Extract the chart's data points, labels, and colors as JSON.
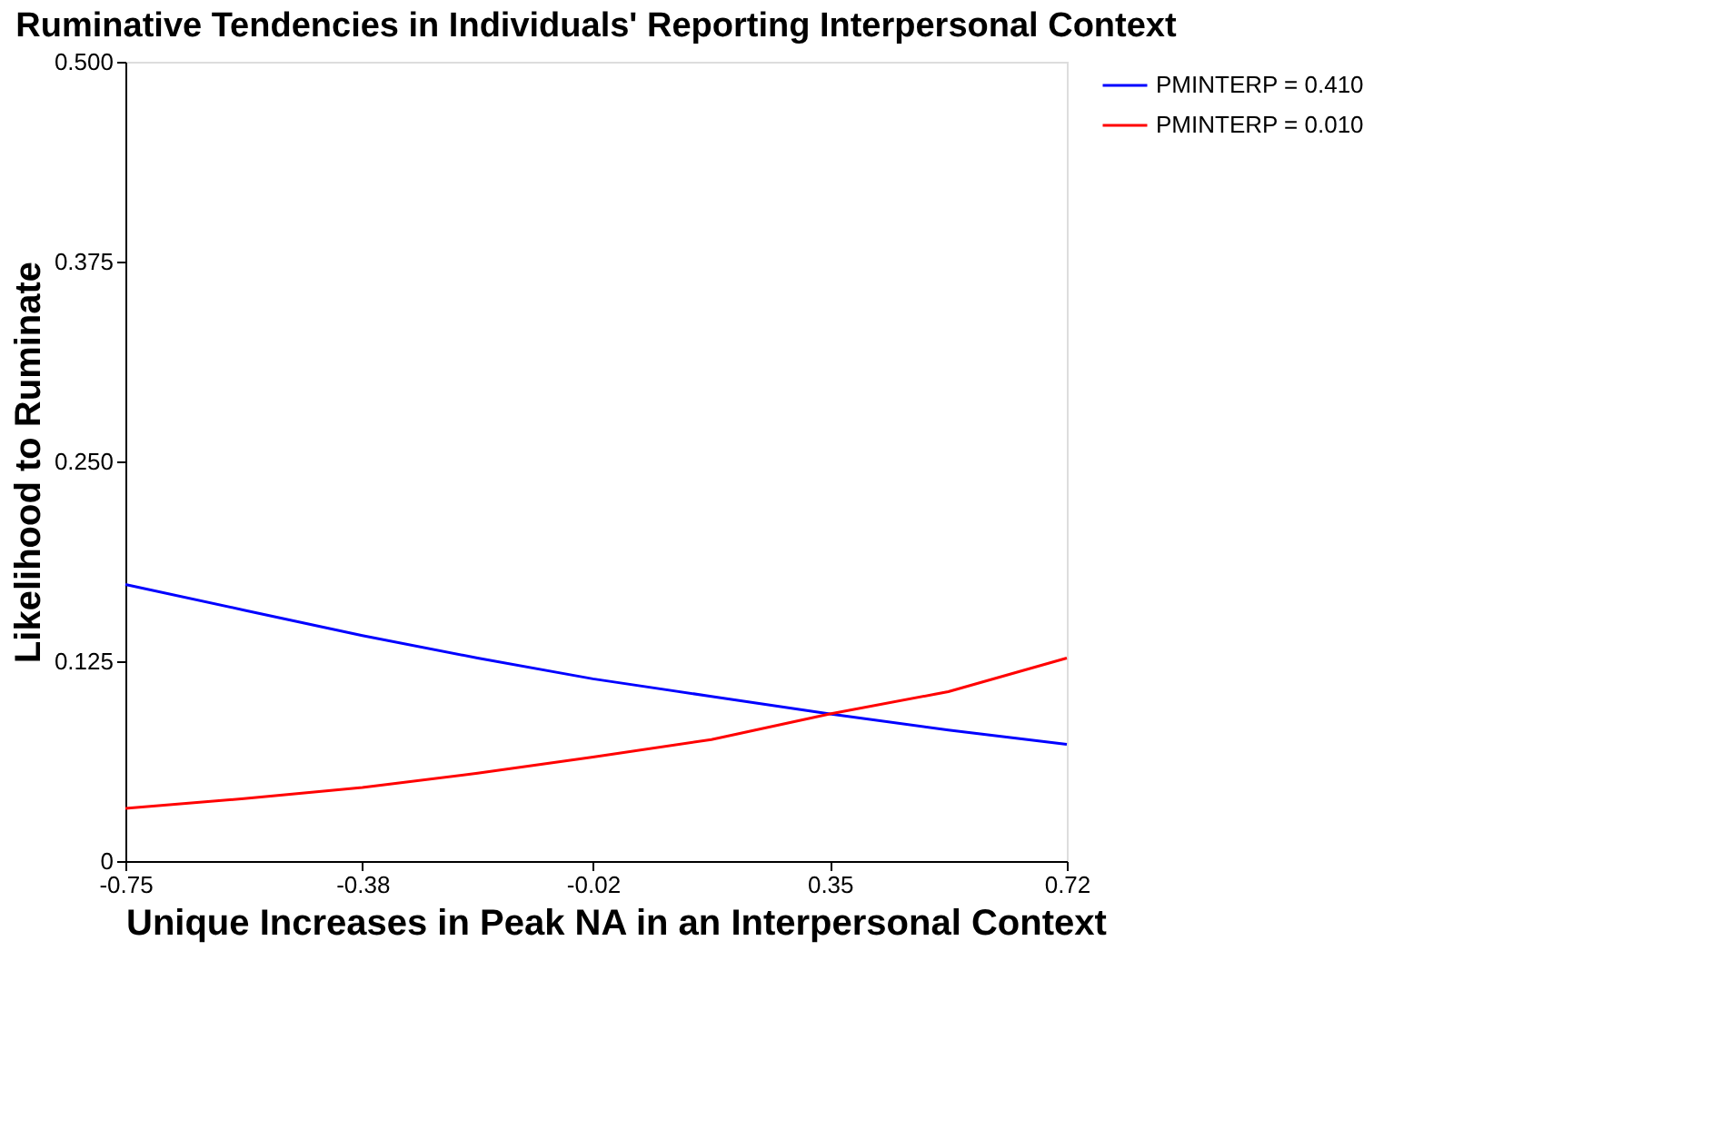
{
  "chart_data": {
    "type": "line",
    "title": "Ruminative Tendencies in Individuals' Reporting Interpersonal Context",
    "xlabel": "Unique Increases in Peak NA in an Interpersonal Context",
    "ylabel": "Likelihood to Ruminate",
    "x": [
      -0.75,
      -0.565,
      -0.38,
      -0.2,
      -0.02,
      0.165,
      0.35,
      0.535,
      0.72
    ],
    "series": [
      {
        "name": "PMINTERP = 0.410",
        "color": "#0000ff",
        "values": [
          0.173,
          0.157,
          0.141,
          0.127,
          0.114,
          0.103,
          0.092,
          0.082,
          0.073
        ]
      },
      {
        "name": "PMINTERP = 0.010",
        "color": "#ff0000",
        "values": [
          0.033,
          0.039,
          0.046,
          0.055,
          0.065,
          0.076,
          0.092,
          0.106,
          0.127
        ]
      }
    ],
    "xlim": [
      -0.75,
      0.72
    ],
    "xticks": [
      -0.75,
      -0.38,
      -0.02,
      0.35,
      0.72
    ],
    "ylim": [
      0,
      0.5
    ],
    "yticks": [
      0,
      0.125,
      {
        "value": 0.25,
        "label": "0.250"
      },
      0.375,
      {
        "value": 0.5,
        "label": "0.500"
      }
    ],
    "grid": false,
    "legend": "top right",
    "marker": "none",
    "line_style": "solid"
  }
}
